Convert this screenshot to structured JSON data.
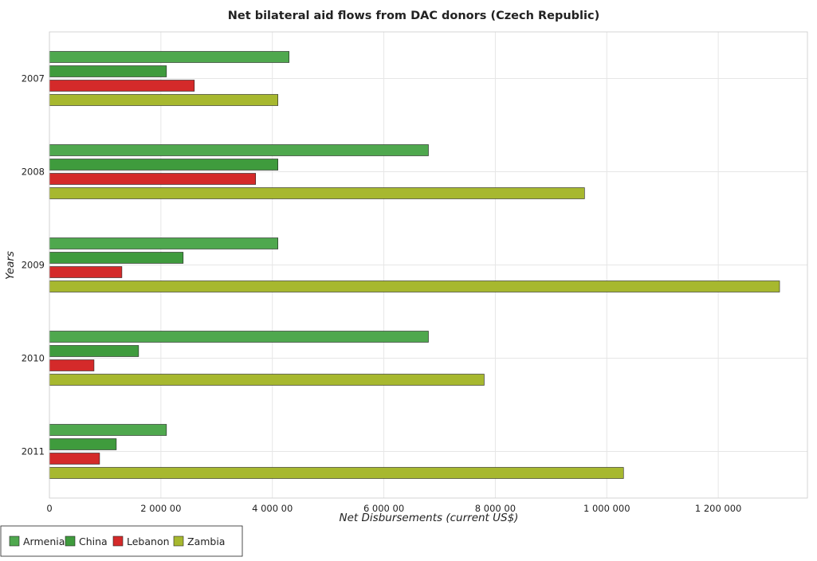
{
  "chart_data": {
    "type": "bar",
    "orientation": "horizontal",
    "title": "Net bilateral aid flows from DAC donors (Czech Republic)",
    "xlabel": "Net Disbursements (current US$)",
    "ylabel": "Years",
    "categories": [
      "2007",
      "2008",
      "2009",
      "2010",
      "2011"
    ],
    "series": [
      {
        "name": "Armenia",
        "color": "#4fa84e",
        "values": [
          430000,
          680000,
          410000,
          680000,
          210000
        ]
      },
      {
        "name": "China",
        "color": "#3f9b3d",
        "values": [
          210000,
          410000,
          240000,
          160000,
          120000
        ]
      },
      {
        "name": "Lebanon",
        "color": "#d42a2a",
        "values": [
          260000,
          370000,
          130000,
          80000,
          90000
        ]
      },
      {
        "name": "Zambia",
        "color": "#a7b82f",
        "values": [
          410000,
          960000,
          1310000,
          780000,
          1030000
        ]
      }
    ],
    "xlim": [
      0,
      1360000
    ],
    "xticks": [
      0,
      200000,
      400000,
      600000,
      800000,
      1000000,
      1200000
    ],
    "xtick_labels": [
      "0",
      "2 000 00",
      "4 000 00",
      "6 000 00",
      "8 000 00",
      "1 000 000",
      "1 200 000"
    ],
    "grid": true,
    "legend_position": "bottom-left"
  }
}
